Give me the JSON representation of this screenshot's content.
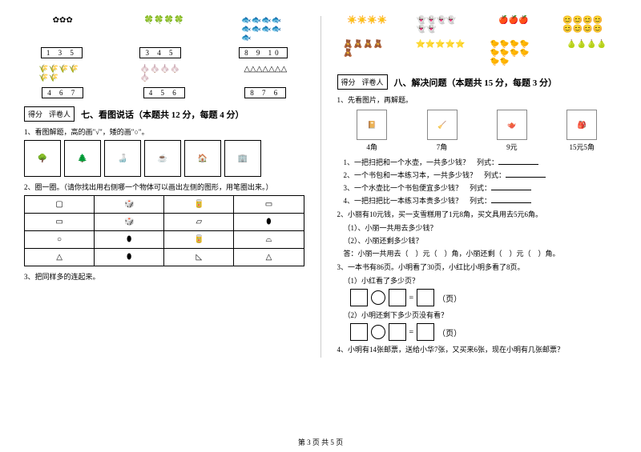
{
  "left": {
    "numboxes_top": [
      "1  3  5",
      "3  4  5",
      "8  9  10"
    ],
    "numboxes_bot": [
      "4  6  7",
      "4  5  6",
      "8  7  6"
    ],
    "score_label1": "得分",
    "score_label2": "评卷人",
    "section7_title": "七、看图说话（本题共 12 分，每题 4 分）",
    "q1": "1、看图解题，高的画\"√\"，矮的画\"○\"。",
    "q2": "2、圈一圈。（请你找出用右侧哪一个物体可以画出左侧的图形，用笔圈出来。）",
    "q3": "3、把同样多的连起来。"
  },
  "right": {
    "score_label1": "得分",
    "score_label2": "评卷人",
    "section8_title": "八、解决问题（本题共 15 分，每题 3 分）",
    "q1": "1、先看图片，再解题。",
    "items": [
      {
        "name": "练习本",
        "price": "4角"
      },
      {
        "name": "扫把",
        "price": "7角"
      },
      {
        "name": "水壶",
        "price": "9元"
      },
      {
        "name": "书包",
        "price": "15元5角"
      }
    ],
    "sub1": "1、一把扫把和一个水壶，一共多少钱？",
    "sub2": "2、一个书包和一本练习本，一共多少钱？",
    "sub3": "3、一个水壶比一个书包便宜多少钱？",
    "sub4": "4、一把扫把比一本练习本贵多少钱？",
    "liesi": "列式：",
    "q2": "2、小丽有10元钱，买一支雪糕用了1元8角，买文具用去5元6角。",
    "q2_1": "（1）、小丽一共用去多少钱？",
    "q2_2": "（2）、小丽还剩多少钱？",
    "q2_ans": "答：小丽一共用去（　）元（　）角，小丽还剩（　）元（　）角。",
    "q3": "3、一本书有86页。小明看了30页，小红比小明多看了8页。",
    "q3_1": "（1）小红看了多少页？",
    "q3_2": "（2）小明还剩下多少页没有看？",
    "page_unit": "（页）",
    "q4": "4、小明有14张邮票，送给小华7张，又买来6张，现在小明有几张邮票？"
  },
  "footer": "第 3 页 共 5 页"
}
